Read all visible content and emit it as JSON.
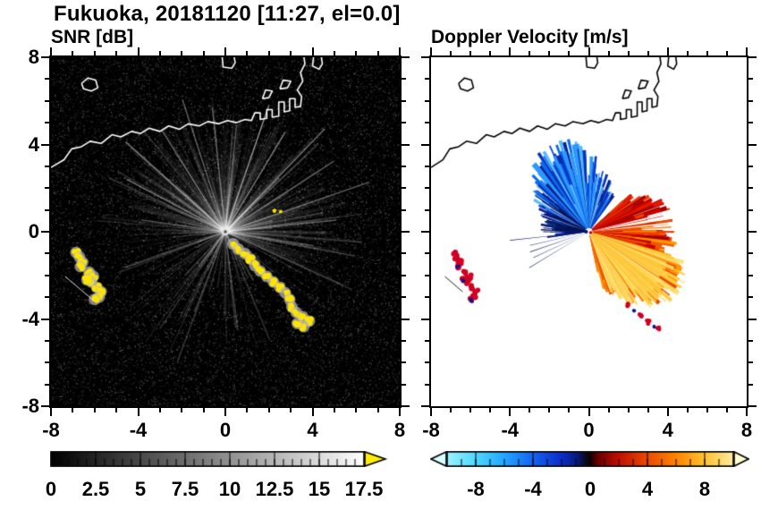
{
  "title": "Fukuoka, 20181120 [11:27, el=0.0]",
  "panels": {
    "snr": {
      "title": "SNR [dB]",
      "xlim": [
        -8,
        8
      ],
      "ylim": [
        -8,
        8
      ],
      "xtick_labels": [
        "-8",
        "-4",
        "0",
        "4",
        "8"
      ],
      "ytick_labels": [
        "8",
        "4",
        "0",
        "-4",
        "-8"
      ],
      "colorbar": {
        "range": [
          0,
          17.5
        ],
        "ticks": [
          "0",
          "2.5",
          "5",
          "7.5",
          "10",
          "12.5",
          "15",
          "17.5"
        ],
        "colors": [
          "#000000",
          "#ffffff"
        ],
        "over_arrow_color": "#ffee00"
      }
    },
    "doppler": {
      "title": "Doppler Velocity [m/s]",
      "xlim": [
        -8,
        8
      ],
      "ylim": [
        -8,
        8
      ],
      "xtick_labels": [
        "-8",
        "-4",
        "0",
        "4",
        "8"
      ],
      "colorbar": {
        "range": [
          -10,
          10
        ],
        "ticks": [
          "-8",
          "-4",
          "0",
          "4",
          "8"
        ],
        "stops": [
          [
            0.0,
            "#9ef2ff"
          ],
          [
            0.1,
            "#4fd8ff"
          ],
          [
            0.2,
            "#22a6ff"
          ],
          [
            0.3,
            "#1563f2"
          ],
          [
            0.4,
            "#0c2ec8"
          ],
          [
            0.455,
            "#081a7a"
          ],
          [
            0.485,
            "#0a0a1a"
          ],
          [
            0.5,
            "#150000"
          ],
          [
            0.53,
            "#6e0000"
          ],
          [
            0.6,
            "#c01000"
          ],
          [
            0.7,
            "#ea4a00"
          ],
          [
            0.8,
            "#ff8400"
          ],
          [
            0.9,
            "#ffc230"
          ],
          [
            1.0,
            "#ffeb9e"
          ]
        ],
        "under_arrow_color": "#d8ffff",
        "over_arrow_color": "#ffffd0"
      }
    }
  },
  "chart_data": {
    "type": "heatmap",
    "title": "Fukuoka, 20181120 [11:27, el=0.0]",
    "site": "Fukuoka",
    "date": "20181120",
    "time": "11:27",
    "elevation_deg": 0.0,
    "axes": {
      "xlim": [
        -8,
        8
      ],
      "ylim": [
        -8,
        8
      ],
      "xticks": [
        -8,
        -4,
        0,
        4,
        8
      ],
      "yticks": [
        -8,
        -4,
        0,
        4,
        8
      ]
    },
    "panels": [
      {
        "name": "SNR",
        "units": "dB",
        "scale": {
          "min": 0,
          "max": 17.5,
          "ticks": [
            0,
            2.5,
            5,
            7.5,
            10,
            12.5,
            15,
            17.5
          ],
          "colormap": "black to white, yellow over-range"
        },
        "features": [
          {
            "type": "radar-site",
            "x": 0,
            "y": 0
          },
          {
            "type": "clutter-spokes",
            "desc": "faint white radial streaks from origin in most azimuths, brightest toward upper-left through upper-right"
          },
          {
            "type": "background",
            "desc": "black field with faint gray speckle noise"
          },
          {
            "type": "high-snr-arc",
            "desc": "yellow echo arc from about (0.3,-0.5) curving to (3.8,-4.3)"
          },
          {
            "type": "high-snr-patches",
            "desc": "yellow patches between (-6.9,-0.9) and (-5.7,-3.1)"
          },
          {
            "type": "point-echo",
            "desc": "small yellow dash near (2.3,0.9)"
          },
          {
            "type": "coastline",
            "desc": "white coastline across upper third with harbor structures near (1.3..3.5, 5..6.3)"
          }
        ]
      },
      {
        "name": "Doppler Velocity",
        "units": "m/s",
        "scale": {
          "min": -10,
          "max": 10,
          "ticks": [
            -8,
            -4,
            0,
            4,
            8
          ],
          "colormap": "pale cyan to blue to black (0) to red to orange to pale yellow"
        },
        "features": [
          {
            "type": "negative-velocity-fan",
            "desc": "blue sector up and upper-left of origin, about -2 to -8 m/s, radius about 4 km"
          },
          {
            "type": "positive-velocity-fan",
            "desc": "red-orange sector right and lower-right of origin, about +2 to +8 m/s, radius about 4.5 km, yellow fringe at outer lower edge"
          },
          {
            "type": "thin-negative-rays",
            "desc": "thin dark-blue rays toward lower-left reaching about (-2.5,-1)"
          },
          {
            "type": "patches",
            "desc": "red/dark-blue patches near (-6.9,-0.9)..(-5.7,-3.1) and (1.9,-3.3)..(3.6,-4.5)"
          },
          {
            "type": "coastline",
            "desc": "black coastline across upper third"
          }
        ]
      }
    ]
  }
}
